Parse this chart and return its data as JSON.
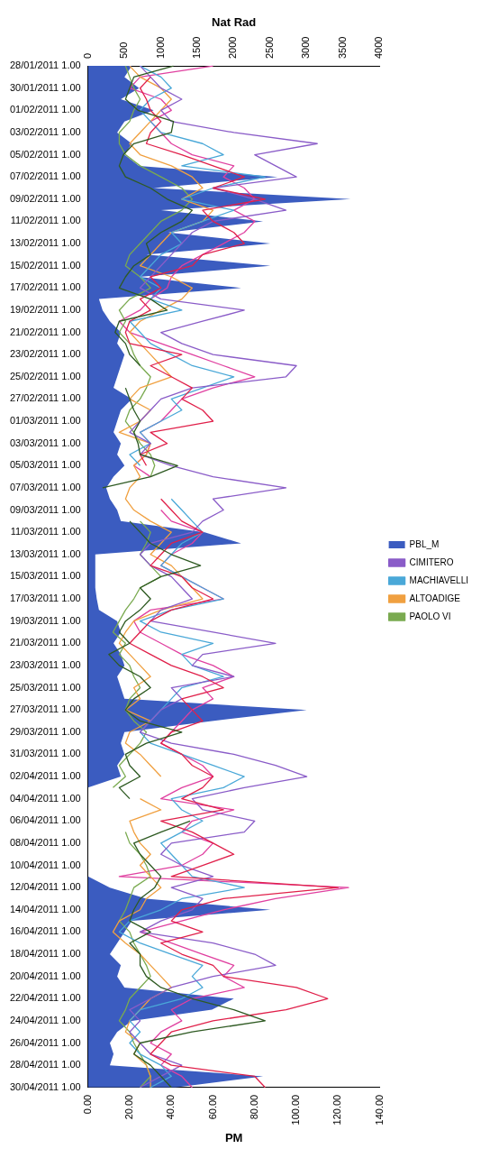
{
  "chart_data": {
    "type": "line",
    "orientation": "horizontal",
    "xlabel": "PM",
    "x2label": "Nat Rad",
    "categories": [
      "28/01/2011 1.00",
      null,
      "30/01/2011 1.00",
      null,
      "01/02/2011 1.00",
      null,
      "03/02/2011 1.00",
      null,
      "05/02/2011 1.00",
      null,
      "07/02/2011 1.00",
      null,
      "09/02/2011 1.00",
      null,
      "11/02/2011 1.00",
      null,
      "13/02/2011 1.00",
      null,
      "15/02/2011 1.00",
      null,
      "17/02/2011 1.00",
      null,
      "19/02/2011 1.00",
      null,
      "21/02/2011 1.00",
      null,
      "23/02/2011 1.00",
      null,
      "25/02/2011 1.00",
      null,
      "27/02/2011 1.00",
      null,
      "01/03/2011 1.00",
      null,
      "03/03/2011 1.00",
      null,
      "05/03/2011 1.00",
      null,
      "07/03/2011 1.00",
      null,
      "09/03/2011 1.00",
      null,
      "11/03/2011 1.00",
      null,
      "13/03/2011 1.00",
      null,
      "15/03/2011 1.00",
      null,
      "17/03/2011 1.00",
      null,
      "19/03/2011 1.00",
      null,
      "21/03/2011 1.00",
      null,
      "23/03/2011 1.00",
      null,
      "25/03/2011 1.00",
      null,
      "27/03/2011 1.00",
      null,
      "29/03/2011 1.00",
      null,
      "31/03/2011 1.00",
      null,
      "02/04/2011 1.00",
      null,
      "04/04/2011 1.00",
      null,
      "06/04/2011 1.00",
      null,
      "08/04/2011 1.00",
      null,
      "10/04/2011 1.00",
      null,
      "12/04/2011 1.00",
      null,
      "14/04/2011 1.00",
      null,
      "16/04/2011 1.00",
      null,
      "18/04/2011 1.00",
      null,
      "20/04/2011 1.00",
      null,
      "22/04/2011 1.00",
      null,
      "24/04/2011 1.00",
      null,
      "26/04/2011 1.00",
      null,
      "28/04/2011 1.00",
      null,
      "30/04/2011 1.00"
    ],
    "xlim": [
      0,
      140
    ],
    "xticks": [
      {
        "value": 0,
        "label": "0.00"
      },
      {
        "value": 20,
        "label": "20.00"
      },
      {
        "value": 40,
        "label": "40.00"
      },
      {
        "value": 60,
        "label": "60.00"
      },
      {
        "value": 80,
        "label": "80.00"
      },
      {
        "value": 100,
        "label": "100.00"
      },
      {
        "value": 120,
        "label": "120.00"
      },
      {
        "value": 140,
        "label": "140.00"
      }
    ],
    "x2lim": [
      0,
      4000
    ],
    "x2ticks": [
      0,
      500,
      1000,
      1500,
      2000,
      2500,
      3000,
      3500,
      4000
    ],
    "legend": "right",
    "marker": "none",
    "series": [
      {
        "name": "PBL_M",
        "type": "area",
        "axis": "x2",
        "color": "#3b5cc0",
        "values": [
          600,
          500,
          700,
          450,
          900,
          500,
          400,
          600,
          500,
          700,
          2600,
          900,
          3600,
          1000,
          2400,
          1100,
          2500,
          800,
          2500,
          700,
          2100,
          150,
          200,
          300,
          450,
          400,
          500,
          450,
          400,
          350,
          600,
          450,
          400,
          350,
          450,
          400,
          500,
          350,
          250,
          300,
          400,
          450,
          1600,
          2100,
          100,
          100,
          100,
          100,
          120,
          150,
          400,
          450,
          350,
          450,
          500,
          400,
          450,
          500,
          3000,
          1700,
          500,
          450,
          500,
          400,
          450,
          0,
          0,
          0,
          0,
          0,
          0,
          0,
          0,
          0,
          300,
          800,
          2500,
          600,
          500,
          400,
          300,
          450,
          400,
          500,
          2000,
          1700,
          600,
          400,
          300,
          350,
          300,
          2400,
          1200
        ]
      },
      {
        "name": null,
        "type": "line",
        "color": "#2e5a22",
        "values": [
          41,
          22,
          20,
          18,
          24,
          41,
          40,
          22,
          17,
          15,
          18,
          30,
          38,
          50,
          45,
          35,
          28,
          30,
          22,
          18,
          15,
          30,
          38,
          15,
          13,
          18,
          20,
          25,
          null,
          18,
          20,
          22,
          25,
          22,
          24,
          25,
          43,
          30,
          7,
          null,
          null,
          20,
          25,
          30,
          40,
          54,
          35,
          25,
          30,
          25,
          18,
          15,
          20,
          10,
          15,
          25,
          30,
          22,
          18,
          25,
          45,
          28,
          18,
          20,
          25,
          15,
          20,
          null,
          49,
          35,
          22,
          25,
          30,
          35,
          32,
          25,
          22,
          20,
          30,
          20,
          25,
          25,
          28,
          35,
          50,
          70,
          85,
          50,
          25,
          22,
          30,
          35,
          40
        ]
      },
      {
        "name": null,
        "type": "line",
        "color": "#e0204a",
        "values": [
          null,
          30,
          25,
          28,
          30,
          35,
          30,
          28,
          45,
          60,
          75,
          60,
          85,
          55,
          60,
          70,
          75,
          55,
          50,
          30,
          35,
          25,
          30,
          20,
          18,
          20,
          45,
          30,
          40,
          50,
          45,
          55,
          60,
          30,
          38,
          25,
          28,
          null,
          null,
          35,
          40,
          45,
          55,
          40,
          35,
          30,
          45,
          50,
          60,
          40,
          30,
          25,
          20,
          30,
          40,
          55,
          65,
          45,
          50,
          55,
          40,
          35,
          45,
          50,
          60,
          55,
          45,
          65,
          35,
          50,
          60,
          70,
          55,
          40,
          120,
          65,
          45,
          40,
          55,
          35,
          45,
          60,
          65,
          100,
          115,
          95,
          60,
          40,
          35,
          30,
          40,
          80,
          85
        ]
      },
      {
        "name": "CIMITERO",
        "type": "line",
        "color": "#8a5cc8",
        "values": [
          25,
          30,
          35,
          45,
          35,
          40,
          70,
          110,
          80,
          90,
          100,
          60,
          80,
          95,
          60,
          50,
          45,
          40,
          35,
          30,
          25,
          35,
          75,
          55,
          35,
          45,
          60,
          100,
          95,
          50,
          35,
          30,
          25,
          20,
          30,
          25,
          40,
          60,
          95,
          60,
          65,
          55,
          50,
          30,
          25,
          30,
          40,
          45,
          50,
          35,
          30,
          60,
          90,
          55,
          50,
          70,
          40,
          45,
          35,
          30,
          25,
          40,
          70,
          90,
          105,
          75,
          50,
          55,
          80,
          75,
          40,
          35,
          45,
          60,
          40,
          55,
          50,
          35,
          25,
          60,
          80,
          90,
          60,
          40,
          30,
          20,
          25,
          20,
          25,
          30,
          45,
          35,
          25
        ]
      },
      {
        "name": "MACHIAVELLI",
        "type": "line",
        "color": "#4aa8d8",
        "values": [
          25,
          35,
          40,
          30,
          25,
          30,
          35,
          55,
          65,
          45,
          85,
          60,
          45,
          70,
          55,
          40,
          45,
          35,
          30,
          25,
          35,
          30,
          45,
          20,
          25,
          30,
          40,
          50,
          70,
          55,
          40,
          45,
          35,
          25,
          30,
          20,
          25,
          null,
          null,
          40,
          45,
          50,
          55,
          45,
          40,
          35,
          45,
          55,
          65,
          40,
          25,
          35,
          60,
          45,
          50,
          65,
          45,
          40,
          35,
          30,
          25,
          30,
          45,
          60,
          75,
          65,
          40,
          45,
          55,
          45,
          35,
          40,
          45,
          50,
          75,
          45,
          35,
          20,
          15,
          25,
          40,
          55,
          50,
          55,
          45,
          25,
          20,
          25,
          20,
          25,
          35,
          40,
          30
        ]
      },
      {
        "name": "ALTOADIGE",
        "type": "line",
        "color": "#f0a040",
        "values": [
          20,
          25,
          35,
          40,
          35,
          30,
          25,
          20,
          25,
          40,
          50,
          55,
          45,
          60,
          55,
          40,
          35,
          30,
          25,
          40,
          50,
          45,
          35,
          25,
          20,
          25,
          30,
          35,
          40,
          25,
          20,
          30,
          25,
          15,
          30,
          28,
          22,
          25,
          20,
          18,
          22,
          30,
          40,
          35,
          30,
          40,
          45,
          50,
          55,
          35,
          22,
          18,
          15,
          20,
          25,
          30,
          22,
          25,
          18,
          30,
          20,
          18,
          25,
          30,
          35,
          null,
          25,
          35,
          20,
          22,
          25,
          30,
          25,
          30,
          35,
          28,
          25,
          15,
          12,
          18,
          25,
          30,
          35,
          40,
          30,
          25,
          20,
          18,
          25,
          22,
          28,
          30,
          30
        ]
      },
      {
        "name": "PAOLO VI",
        "type": "line",
        "color": "#7aaa50",
        "values": [
          18,
          20,
          22,
          25,
          22,
          20,
          15,
          15,
          18,
          25,
          35,
          45,
          50,
          45,
          35,
          30,
          25,
          20,
          18,
          25,
          30,
          20,
          15,
          18,
          15,
          20,
          22,
          25,
          30,
          28,
          25,
          20,
          18,
          22,
          25,
          30,
          32,
          30,
          null,
          null,
          null,
          25,
          30,
          28,
          25,
          30,
          35,
          25,
          22,
          18,
          15,
          12,
          18,
          15,
          20,
          22,
          25,
          20,
          18,
          22,
          28,
          25,
          20,
          15,
          18,
          12,
          null,
          null,
          null,
          18,
          20,
          25,
          28,
          30,
          22,
          20,
          18,
          15,
          20,
          22,
          25,
          28,
          30,
          25,
          20,
          18,
          15,
          20,
          22,
          25,
          28,
          30,
          25
        ]
      },
      {
        "name": null,
        "type": "line",
        "color": "#e040a0",
        "values": [
          60,
          25,
          20,
          35,
          40,
          30,
          35,
          40,
          50,
          70,
          65,
          75,
          80,
          70,
          80,
          75,
          65,
          55,
          45,
          40,
          38,
          30,
          25,
          15,
          20,
          35,
          50,
          65,
          80,
          60,
          45,
          40,
          35,
          25,
          30,
          28,
          22,
          30,
          null,
          null,
          35,
          40,
          55,
          50,
          40,
          35,
          45,
          55,
          65,
          30,
          22,
          25,
          35,
          45,
          60,
          70,
          55,
          60,
          50,
          45,
          40,
          35,
          45,
          55,
          60,
          45,
          35,
          70,
          50,
          45,
          60,
          55,
          45,
          15,
          125,
          90,
          65,
          45,
          25,
          40,
          55,
          70,
          65,
          75,
          50,
          40,
          45,
          35,
          30,
          40,
          35,
          45,
          50
        ]
      }
    ]
  }
}
